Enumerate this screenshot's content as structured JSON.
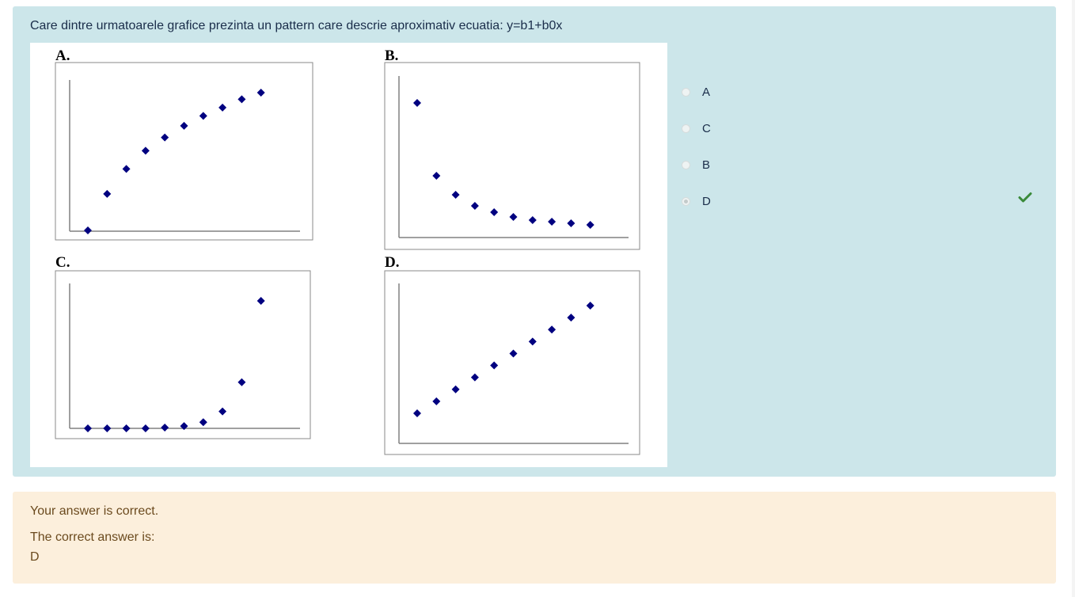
{
  "question": {
    "text": "Care dintre urmatoarele grafice prezinta un pattern care descrie aproximativ ecuatia: y=b1+b0x"
  },
  "chart_data": [
    {
      "type": "scatter",
      "label": "A.",
      "title": "",
      "x": [
        1,
        2,
        3,
        4,
        5,
        6,
        7,
        8,
        9,
        10
      ],
      "y": [
        0.2,
        2.4,
        3.9,
        5.0,
        5.8,
        6.5,
        7.1,
        7.6,
        8.1,
        8.5
      ]
    },
    {
      "type": "scatter",
      "label": "B.",
      "title": "",
      "x": [
        1,
        2,
        3,
        4,
        5,
        6,
        7,
        8,
        9,
        10
      ],
      "y": [
        8.5,
        3.9,
        2.7,
        2.0,
        1.6,
        1.3,
        1.1,
        1.0,
        0.9,
        0.8
      ]
    },
    {
      "type": "scatter",
      "label": "C.",
      "title": "",
      "x": [
        1,
        2,
        3,
        4,
        5,
        6,
        7,
        8,
        9,
        10
      ],
      "y": [
        0.0,
        0.0,
        0.0,
        0.0,
        0.05,
        0.15,
        0.4,
        1.1,
        3.0,
        8.3
      ]
    },
    {
      "type": "scatter",
      "label": "D.",
      "title": "",
      "x": [
        1,
        2,
        3,
        4,
        5,
        6,
        7,
        8,
        9,
        10
      ],
      "y": [
        1.2,
        1.9,
        2.6,
        3.3,
        4.0,
        4.7,
        5.4,
        6.1,
        6.8,
        7.5
      ]
    }
  ],
  "answers": [
    {
      "label": "A",
      "selected": false
    },
    {
      "label": "C",
      "selected": false
    },
    {
      "label": "B",
      "selected": false
    },
    {
      "label": "D",
      "selected": true
    }
  ],
  "feedback": {
    "status": "Your answer is correct.",
    "correct_intro": "The correct answer is:",
    "correct_value": "D"
  },
  "colors": {
    "marker": "#000080",
    "axis": "#808080",
    "correct": "#3a8a3a"
  },
  "icons": {
    "correct": "check-icon"
  }
}
